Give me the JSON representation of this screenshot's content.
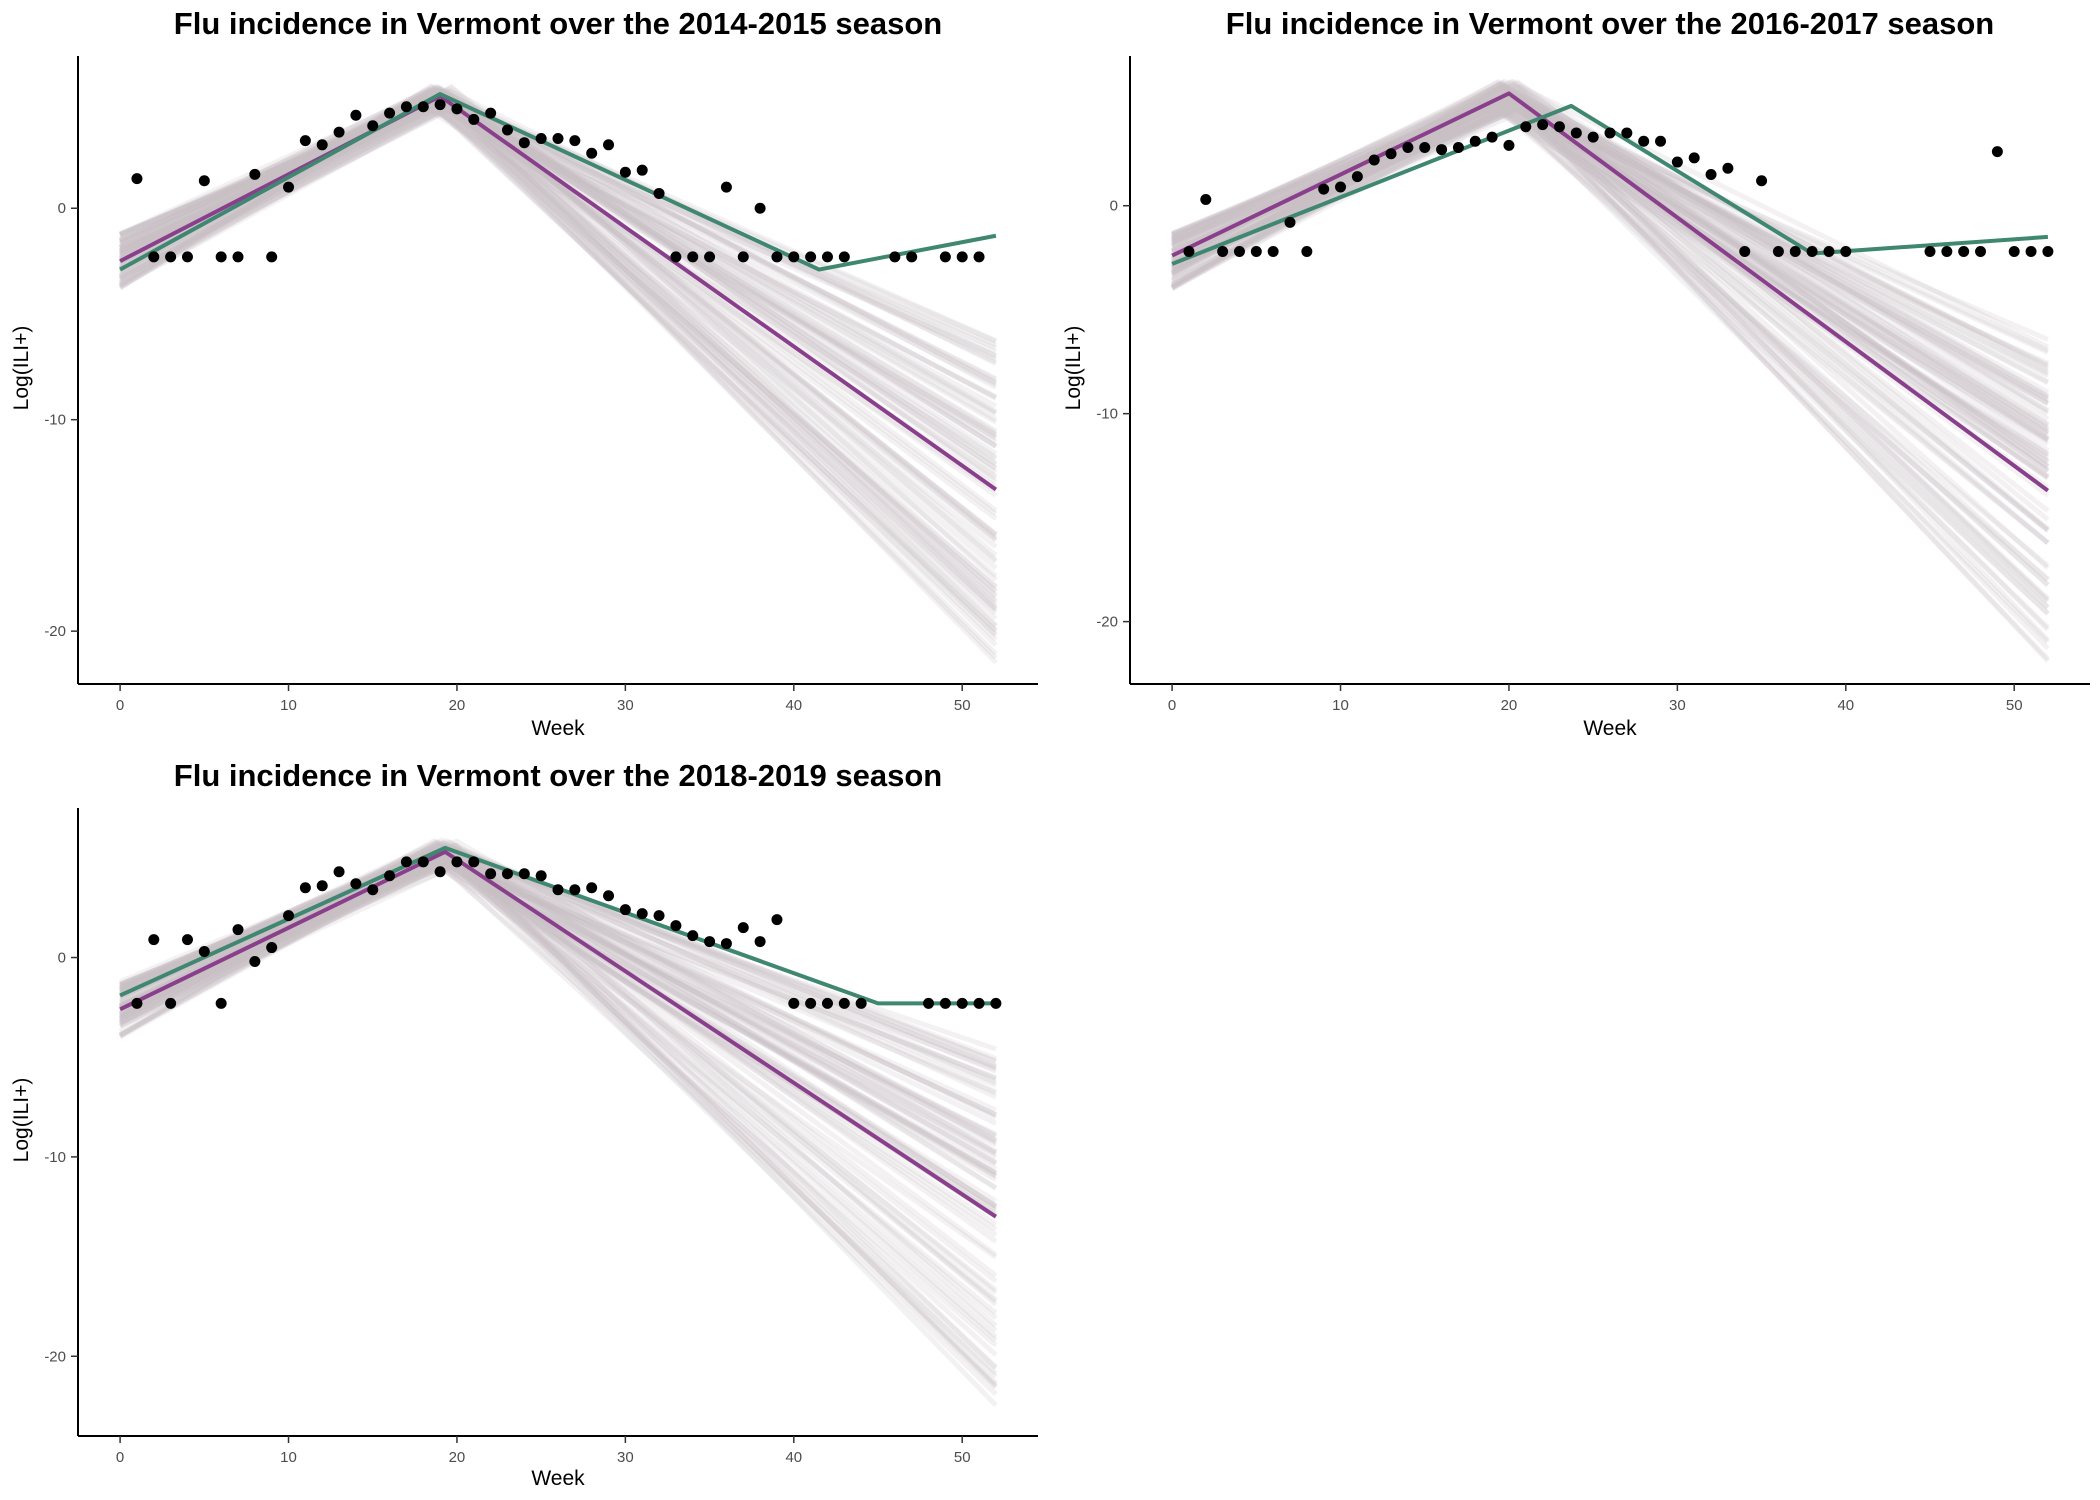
{
  "chart_data": [
    {
      "type": "line",
      "title": "Flu incidence in Vermont over the 2014-2015 season",
      "xlabel": "Week",
      "ylabel": "Log(ILI+)",
      "xlim": [
        -2.5,
        54.5
      ],
      "ylim": [
        -22.5,
        7.2
      ],
      "x_ticks": [
        0,
        10,
        20,
        30,
        40,
        50
      ],
      "y_ticks": [
        0,
        -10,
        -20
      ],
      "grid": false,
      "colors": {
        "purple": "#8a3f8c",
        "green": "#3f8770",
        "ensemble": "#c9bec5",
        "points": "#000000"
      },
      "ensemble": {
        "count": 90,
        "start_range": [
          -3.8,
          -1.2
        ],
        "peak_x": 19,
        "peak_range": [
          4.6,
          5.8
        ],
        "end_x": 52,
        "end_range": [
          -21.5,
          -6.2
        ]
      },
      "series": [
        {
          "values": [
            [
              0,
              -2.5
            ],
            [
              19,
              5.3
            ],
            [
              52,
              -13.3
            ]
          ]
        },
        {
          "values": [
            [
              0,
              -2.9
            ],
            [
              19,
              5.4
            ],
            [
              41.5,
              -2.9
            ],
            [
              52,
              -1.3
            ]
          ]
        }
      ],
      "observed": [
        [
          1,
          1.4
        ],
        [
          2,
          -2.3
        ],
        [
          3,
          -2.3
        ],
        [
          4,
          -2.3
        ],
        [
          5,
          1.3
        ],
        [
          6,
          -2.3
        ],
        [
          7,
          -2.3
        ],
        [
          8,
          1.6
        ],
        [
          9,
          -2.3
        ],
        [
          10,
          1.0
        ],
        [
          11,
          3.2
        ],
        [
          12,
          3.0
        ],
        [
          13,
          3.6
        ],
        [
          14,
          4.4
        ],
        [
          15,
          3.9
        ],
        [
          16,
          4.5
        ],
        [
          17,
          4.8
        ],
        [
          18,
          4.8
        ],
        [
          19,
          4.9
        ],
        [
          20,
          4.7
        ],
        [
          21,
          4.2
        ],
        [
          22,
          4.5
        ],
        [
          23,
          3.7
        ],
        [
          24,
          3.1
        ],
        [
          25,
          3.3
        ],
        [
          26,
          3.3
        ],
        [
          27,
          3.2
        ],
        [
          28,
          2.6
        ],
        [
          29,
          3.0
        ],
        [
          30,
          1.7
        ],
        [
          31,
          1.8
        ],
        [
          32,
          0.7
        ],
        [
          33,
          -2.3
        ],
        [
          34,
          -2.3
        ],
        [
          35,
          -2.3
        ],
        [
          36,
          1.0
        ],
        [
          37,
          -2.3
        ],
        [
          38,
          0.0
        ],
        [
          39,
          -2.3
        ],
        [
          40,
          -2.3
        ],
        [
          41,
          -2.3
        ],
        [
          42,
          -2.3
        ],
        [
          43,
          -2.3
        ],
        [
          46,
          -2.3
        ],
        [
          47,
          -2.3
        ],
        [
          49,
          -2.3
        ],
        [
          50,
          -2.3
        ],
        [
          51,
          -2.3
        ]
      ]
    },
    {
      "type": "line",
      "title": "Flu incidence in Vermont over the 2016-2017 season",
      "xlabel": "Week",
      "ylabel": "Log(ILI+)",
      "xlim": [
        -2.5,
        54.5
      ],
      "ylim": [
        -23.0,
        7.2
      ],
      "x_ticks": [
        0,
        10,
        20,
        30,
        40,
        50
      ],
      "y_ticks": [
        0,
        -10,
        -20
      ],
      "grid": false,
      "colors": {
        "purple": "#8a3f8c",
        "green": "#3f8770",
        "ensemble": "#c9bec5",
        "points": "#000000"
      },
      "ensemble": {
        "count": 90,
        "start_range": [
          -4.0,
          -1.3
        ],
        "peak_x": 20,
        "peak_range": [
          4.4,
          6.0
        ],
        "end_x": 52,
        "end_range": [
          -22.0,
          -6.2
        ]
      },
      "series": [
        {
          "values": [
            [
              0,
              -2.4
            ],
            [
              20,
              5.4
            ],
            [
              52,
              -13.7
            ]
          ]
        },
        {
          "values": [
            [
              0,
              -2.8
            ],
            [
              23.7,
              4.8
            ],
            [
              38,
              -2.3
            ],
            [
              52,
              -1.5
            ]
          ]
        }
      ],
      "observed": [
        [
          1,
          -2.2
        ],
        [
          2,
          0.3
        ],
        [
          3,
          -2.2
        ],
        [
          4,
          -2.2
        ],
        [
          5,
          -2.2
        ],
        [
          6,
          -2.2
        ],
        [
          7,
          -0.8
        ],
        [
          8,
          -2.2
        ],
        [
          9,
          0.8
        ],
        [
          10,
          0.9
        ],
        [
          11,
          1.4
        ],
        [
          12,
          2.2
        ],
        [
          13,
          2.5
        ],
        [
          14,
          2.8
        ],
        [
          15,
          2.8
        ],
        [
          16,
          2.7
        ],
        [
          17,
          2.8
        ],
        [
          18,
          3.1
        ],
        [
          19,
          3.3
        ],
        [
          20,
          2.9
        ],
        [
          21,
          3.8
        ],
        [
          22,
          3.9
        ],
        [
          23,
          3.8
        ],
        [
          24,
          3.5
        ],
        [
          25,
          3.3
        ],
        [
          26,
          3.5
        ],
        [
          27,
          3.5
        ],
        [
          28,
          3.1
        ],
        [
          29,
          3.1
        ],
        [
          30,
          2.1
        ],
        [
          31,
          2.3
        ],
        [
          32,
          1.5
        ],
        [
          33,
          1.8
        ],
        [
          34,
          -2.2
        ],
        [
          35,
          1.2
        ],
        [
          36,
          -2.2
        ],
        [
          37,
          -2.2
        ],
        [
          38,
          -2.2
        ],
        [
          39,
          -2.2
        ],
        [
          40,
          -2.2
        ],
        [
          45,
          -2.2
        ],
        [
          46,
          -2.2
        ],
        [
          47,
          -2.2
        ],
        [
          48,
          -2.2
        ],
        [
          49,
          2.6
        ],
        [
          50,
          -2.2
        ],
        [
          51,
          -2.2
        ],
        [
          52,
          -2.2
        ]
      ]
    },
    {
      "type": "line",
      "title": "Flu incidence in Vermont over the 2018-2019 season",
      "xlabel": "Week",
      "ylabel": "Log(ILI+)",
      "xlim": [
        -2.5,
        54.5
      ],
      "ylim": [
        -24.0,
        7.5
      ],
      "x_ticks": [
        0,
        10,
        20,
        30,
        40,
        50
      ],
      "y_ticks": [
        0,
        -10,
        -20
      ],
      "grid": false,
      "colors": {
        "purple": "#8a3f8c",
        "green": "#3f8770",
        "ensemble": "#c9bec5",
        "points": "#000000"
      },
      "ensemble": {
        "count": 90,
        "start_range": [
          -4.0,
          -1.2
        ],
        "peak_x": 19.3,
        "peak_range": [
          4.6,
          5.9
        ],
        "end_x": 52,
        "end_range": [
          -22.8,
          -4.5
        ]
      },
      "series": [
        {
          "values": [
            [
              0,
              -2.6
            ],
            [
              19.3,
              5.3
            ],
            [
              52,
              -13.0
            ]
          ]
        },
        {
          "values": [
            [
              0,
              -1.9
            ],
            [
              19.3,
              5.5
            ],
            [
              45,
              -2.3
            ],
            [
              52,
              -2.3
            ]
          ]
        }
      ],
      "observed": [
        [
          1,
          -2.3
        ],
        [
          2,
          0.9
        ],
        [
          3,
          -2.3
        ],
        [
          4,
          0.9
        ],
        [
          5,
          0.3
        ],
        [
          6,
          -2.3
        ],
        [
          7,
          1.4
        ],
        [
          8,
          -0.2
        ],
        [
          9,
          0.5
        ],
        [
          10,
          2.1
        ],
        [
          11,
          3.5
        ],
        [
          12,
          3.6
        ],
        [
          13,
          4.3
        ],
        [
          14,
          3.7
        ],
        [
          15,
          3.4
        ],
        [
          16,
          4.1
        ],
        [
          17,
          4.8
        ],
        [
          18,
          4.8
        ],
        [
          19,
          4.3
        ],
        [
          20,
          4.8
        ],
        [
          21,
          4.8
        ],
        [
          22,
          4.2
        ],
        [
          23,
          4.2
        ],
        [
          24,
          4.2
        ],
        [
          25,
          4.1
        ],
        [
          26,
          3.4
        ],
        [
          27,
          3.4
        ],
        [
          28,
          3.5
        ],
        [
          29,
          3.1
        ],
        [
          30,
          2.4
        ],
        [
          31,
          2.2
        ],
        [
          32,
          2.1
        ],
        [
          33,
          1.6
        ],
        [
          34,
          1.1
        ],
        [
          35,
          0.8
        ],
        [
          36,
          0.7
        ],
        [
          37,
          1.5
        ],
        [
          38,
          0.8
        ],
        [
          39,
          1.9
        ],
        [
          40,
          -2.3
        ],
        [
          41,
          -2.3
        ],
        [
          42,
          -2.3
        ],
        [
          43,
          -2.3
        ],
        [
          44,
          -2.3
        ],
        [
          48,
          -2.3
        ],
        [
          49,
          -2.3
        ],
        [
          50,
          -2.3
        ],
        [
          51,
          -2.3
        ],
        [
          52,
          -2.3
        ]
      ]
    }
  ]
}
